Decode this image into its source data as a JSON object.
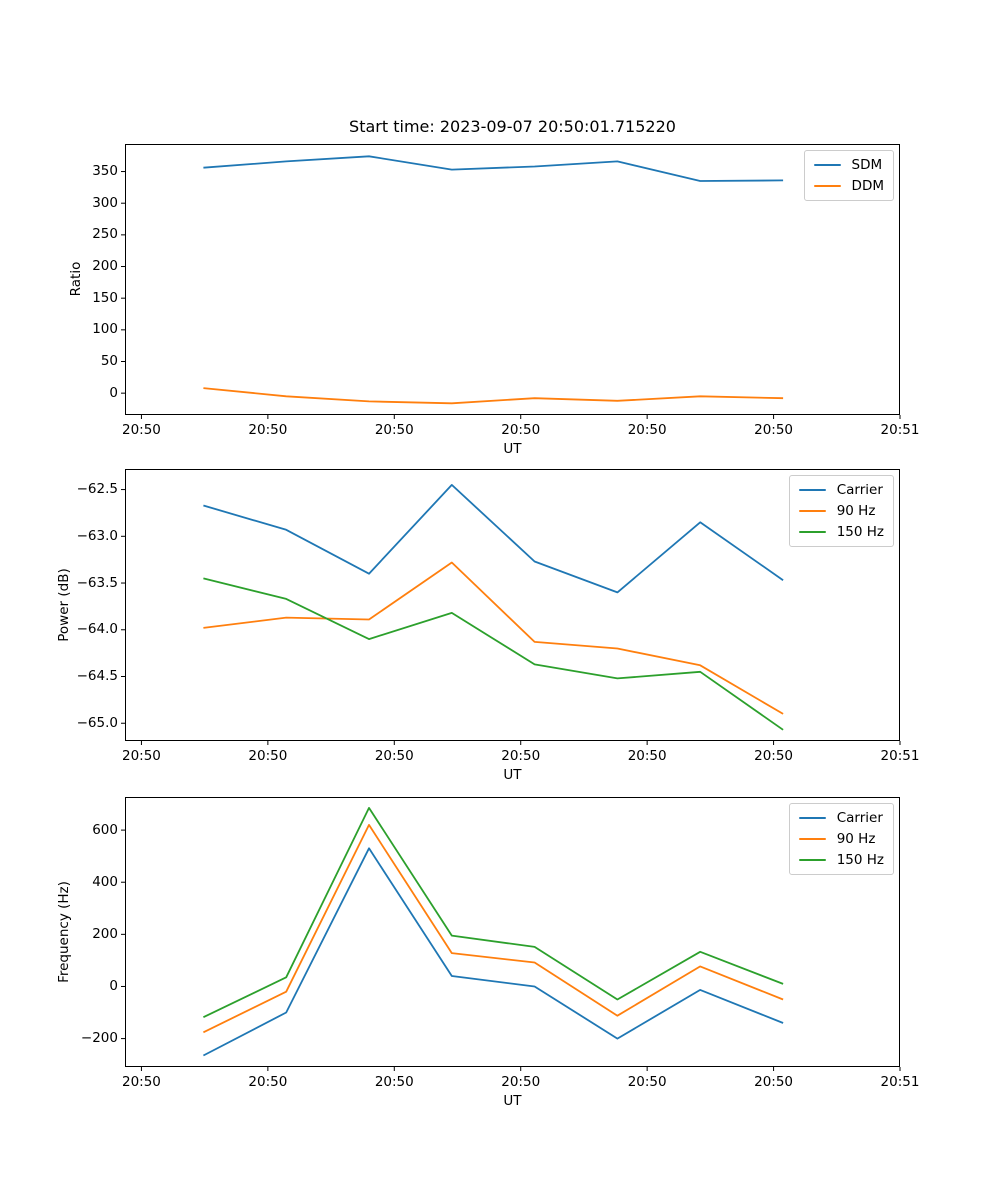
{
  "figure": {
    "background": "#ffffff",
    "title": "Start time: 2023-09-07 20:50:01.715220"
  },
  "colors": {
    "blue": "#1f77b4",
    "orange": "#ff7f0e",
    "green": "#2ca02c"
  },
  "chart_data": [
    {
      "type": "line",
      "title": "Start time: 2023-09-07 20:50:01.715220",
      "xlabel": "UT",
      "ylabel": "Ratio",
      "x_seconds_after_20_50_00": [
        4.9,
        11.45,
        18.0,
        24.55,
        31.1,
        37.65,
        44.2,
        50.75
      ],
      "xlim": [
        -1.3,
        60
      ],
      "ylim": [
        -34.5,
        393.5
      ],
      "grid": false,
      "legend_position": "upper right",
      "xticks": {
        "values": [
          0,
          10,
          20,
          30,
          40,
          50,
          60
        ],
        "labels": [
          "20:50",
          "20:50",
          "20:50",
          "20:50",
          "20:50",
          "20:50",
          "20:51"
        ]
      },
      "yticks": {
        "values": [
          0,
          50,
          100,
          150,
          200,
          250,
          300,
          350
        ],
        "labels": [
          "0",
          "50",
          "100",
          "150",
          "200",
          "250",
          "300",
          "350"
        ]
      },
      "series": [
        {
          "name": "SDM",
          "color": "#1f77b4",
          "values": [
            356,
            366,
            374,
            353,
            358,
            366,
            335,
            336
          ]
        },
        {
          "name": "DDM",
          "color": "#ff7f0e",
          "values": [
            8,
            -5,
            -13,
            -16,
            -8,
            -12,
            -5,
            -8
          ]
        }
      ]
    },
    {
      "type": "line",
      "title": "",
      "xlabel": "UT",
      "ylabel": "Power (dB)",
      "x_seconds_after_20_50_00": [
        4.9,
        11.45,
        18.0,
        24.55,
        31.1,
        37.65,
        44.2,
        50.75
      ],
      "xlim": [
        -1.3,
        60
      ],
      "ylim": [
        -65.19,
        -62.28
      ],
      "grid": false,
      "legend_position": "upper right",
      "xticks": {
        "values": [
          0,
          10,
          20,
          30,
          40,
          50,
          60
        ],
        "labels": [
          "20:50",
          "20:50",
          "20:50",
          "20:50",
          "20:50",
          "20:50",
          "20:51"
        ]
      },
      "yticks": {
        "values": [
          -62.5,
          -63.0,
          -63.5,
          -64.0,
          -64.5,
          -65.0
        ],
        "labels": [
          "−62.5",
          "−63.0",
          "−63.5",
          "−64.0",
          "−64.5",
          "−65.0"
        ]
      },
      "series": [
        {
          "name": "Carrier",
          "color": "#1f77b4",
          "values": [
            -62.67,
            -62.93,
            -63.4,
            -62.45,
            -63.27,
            -63.6,
            -62.85,
            -63.47
          ]
        },
        {
          "name": "90 Hz",
          "color": "#ff7f0e",
          "values": [
            -63.98,
            -63.87,
            -63.89,
            -63.28,
            -64.13,
            -64.2,
            -64.38,
            -64.9
          ]
        },
        {
          "name": "150 Hz",
          "color": "#2ca02c",
          "values": [
            -63.45,
            -63.67,
            -64.1,
            -63.82,
            -64.37,
            -64.52,
            -64.45,
            -65.07
          ]
        }
      ]
    },
    {
      "type": "line",
      "title": "",
      "xlabel": "UT",
      "ylabel": "Frequency (Hz)",
      "x_seconds_after_20_50_00": [
        4.9,
        11.45,
        18.0,
        24.55,
        31.1,
        37.65,
        44.2,
        50.75
      ],
      "xlim": [
        -1.3,
        60
      ],
      "ylim": [
        -309,
        727
      ],
      "grid": false,
      "legend_position": "upper right",
      "xticks": {
        "values": [
          0,
          10,
          20,
          30,
          40,
          50,
          60
        ],
        "labels": [
          "20:50",
          "20:50",
          "20:50",
          "20:50",
          "20:50",
          "20:50",
          "20:51"
        ]
      },
      "yticks": {
        "values": [
          -200,
          0,
          200,
          400,
          600
        ],
        "labels": [
          "−200",
          "0",
          "200",
          "400",
          "600"
        ]
      },
      "series": [
        {
          "name": "Carrier",
          "color": "#1f77b4",
          "values": [
            -265,
            -100,
            530,
            40,
            0,
            -200,
            -13,
            -140
          ]
        },
        {
          "name": "90 Hz",
          "color": "#ff7f0e",
          "values": [
            -176,
            -20,
            620,
            128,
            92,
            -112,
            77,
            -50
          ]
        },
        {
          "name": "150 Hz",
          "color": "#2ca02c",
          "values": [
            -118,
            35,
            685,
            195,
            152,
            -50,
            133,
            10
          ]
        }
      ]
    }
  ]
}
